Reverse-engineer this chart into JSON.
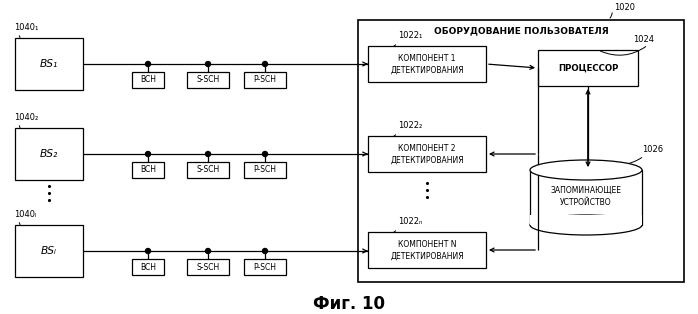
{
  "bg_color": "#ffffff",
  "fig_title": "Фиг. 10",
  "label_1020": "1020",
  "label_1040_1": "1040₁",
  "label_1040_2": "1040₂",
  "label_1040_L": "1040ₗ",
  "label_1022_1": "1022₁",
  "label_1022_2": "1022₂",
  "label_1022_N": "1022ₙ",
  "label_1024": "1024",
  "label_1026": "1026",
  "bs1_text": "BS₁",
  "bs2_text": "BS₂",
  "bsL_text": "BSₗ",
  "comp1_text": "КОМПОНЕНТ 1\nДЕТЕКТИРОВАНИЯ",
  "comp2_text": "КОМПОНЕНТ 2\nДЕТЕКТИРОВАНИЯ",
  "compN_text": "КОМПОНЕНТ N\nДЕТЕКТИРОВАНИЯ",
  "proc_text": "ПРОЦЕССОР",
  "mem_text": "ЗАПОМИНАЮЩЕЕ\nУСТРОЙСТВО",
  "ue_title": "ОБОРУДОВАНИЕ ПОЛЬЗОВАТЕЛЯ",
  "bch_text": "BCH",
  "ssch_text": "S-SCH",
  "psch_text": "P-SCH"
}
